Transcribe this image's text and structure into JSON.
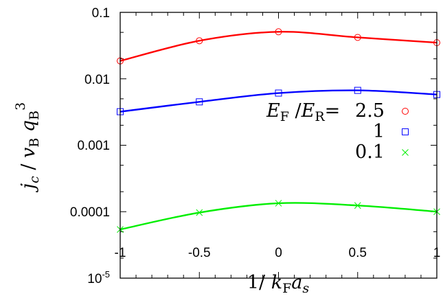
{
  "chart_data": {
    "type": "line",
    "x": [
      -1,
      -0.5,
      0,
      0.5,
      1
    ],
    "series": [
      {
        "name": "2.5",
        "color": "#ff0000",
        "marker": "circle",
        "values": [
          0.0186,
          0.0374,
          0.051,
          0.042,
          0.035
        ]
      },
      {
        "name": "1",
        "color": "#0000ff",
        "marker": "square",
        "values": [
          0.0032,
          0.0045,
          0.0061,
          0.0067,
          0.0058
        ]
      },
      {
        "name": "0.1",
        "color": "#00ee00",
        "marker": "cross",
        "values": [
          5.4e-05,
          9.7e-05,
          0.000134,
          0.000124,
          0.0001
        ]
      }
    ],
    "legend_title": "E_F/E_R =",
    "legend_placement": "right",
    "xlabel": "1/ k_F a_s",
    "ylabel": "j_c / v_B q_B^3",
    "xlim": [
      -1,
      1
    ],
    "ylim": [
      1e-05,
      0.1
    ],
    "yscale": "log",
    "grid": false,
    "xticks": [
      "-1",
      "-0.5",
      "0",
      "0.5",
      "1"
    ],
    "yticks": [
      "0.1",
      "0.01",
      "0.001",
      "0.0001",
      "10-5"
    ]
  }
}
